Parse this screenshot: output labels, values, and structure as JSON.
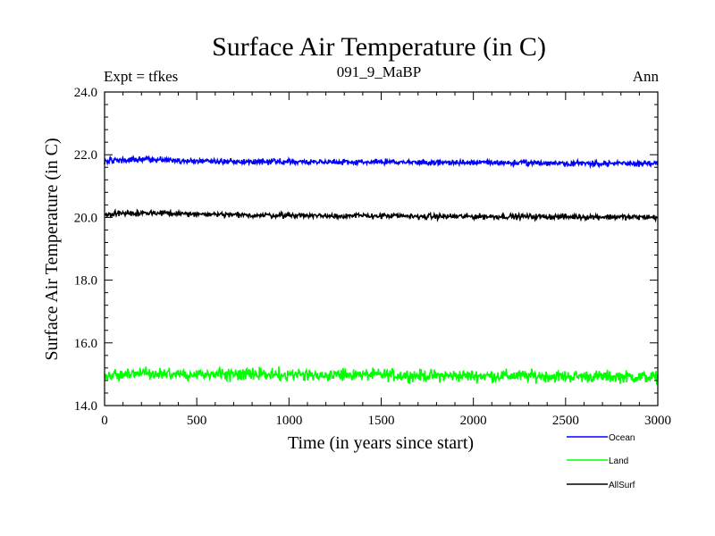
{
  "chart_data": {
    "type": "line",
    "title": "Surface Air Temperature (in C)",
    "subtitle": "091_9_MaBP",
    "left_note": "Expt = tfkes",
    "right_note": "Ann",
    "xlabel": "Time (in years since start)",
    "ylabel": "Surface Air Temperature (in C)",
    "xlim": [
      0,
      3000
    ],
    "ylim": [
      14.0,
      24.0
    ],
    "x_ticks": [
      "0",
      "500",
      "1000",
      "1500",
      "2000",
      "2500",
      "3000"
    ],
    "y_ticks": [
      "14.0",
      "16.0",
      "18.0",
      "20.0",
      "22.0",
      "24.0"
    ],
    "grid": false,
    "legend_position": "bottom-right, below plot",
    "series": [
      {
        "name": "Ocean",
        "color": "#0000ff",
        "x": [
          0,
          250,
          500,
          750,
          1000,
          1250,
          1500,
          1750,
          2000,
          2250,
          2500,
          2750,
          3000
        ],
        "values": [
          21.8,
          21.85,
          21.8,
          21.78,
          21.78,
          21.77,
          21.77,
          21.75,
          21.75,
          21.74,
          21.73,
          21.72,
          21.72
        ],
        "noise_amplitude": 0.08
      },
      {
        "name": "Land",
        "color": "#00ff00",
        "x": [
          0,
          250,
          500,
          750,
          1000,
          1250,
          1500,
          1750,
          2000,
          2250,
          2500,
          2750,
          3000
        ],
        "values": [
          14.95,
          15.05,
          15.0,
          15.0,
          15.0,
          14.98,
          14.98,
          14.95,
          14.95,
          14.95,
          14.93,
          14.93,
          14.9
        ],
        "noise_amplitude": 0.18
      },
      {
        "name": "AllSurf",
        "color": "#000000",
        "x": [
          0,
          250,
          500,
          750,
          1000,
          1250,
          1500,
          1750,
          2000,
          2250,
          2500,
          2750,
          3000
        ],
        "values": [
          20.1,
          20.15,
          20.1,
          20.07,
          20.07,
          20.05,
          20.05,
          20.03,
          20.03,
          20.03,
          20.02,
          20.02,
          20.0
        ],
        "noise_amplitude": 0.08
      }
    ]
  }
}
